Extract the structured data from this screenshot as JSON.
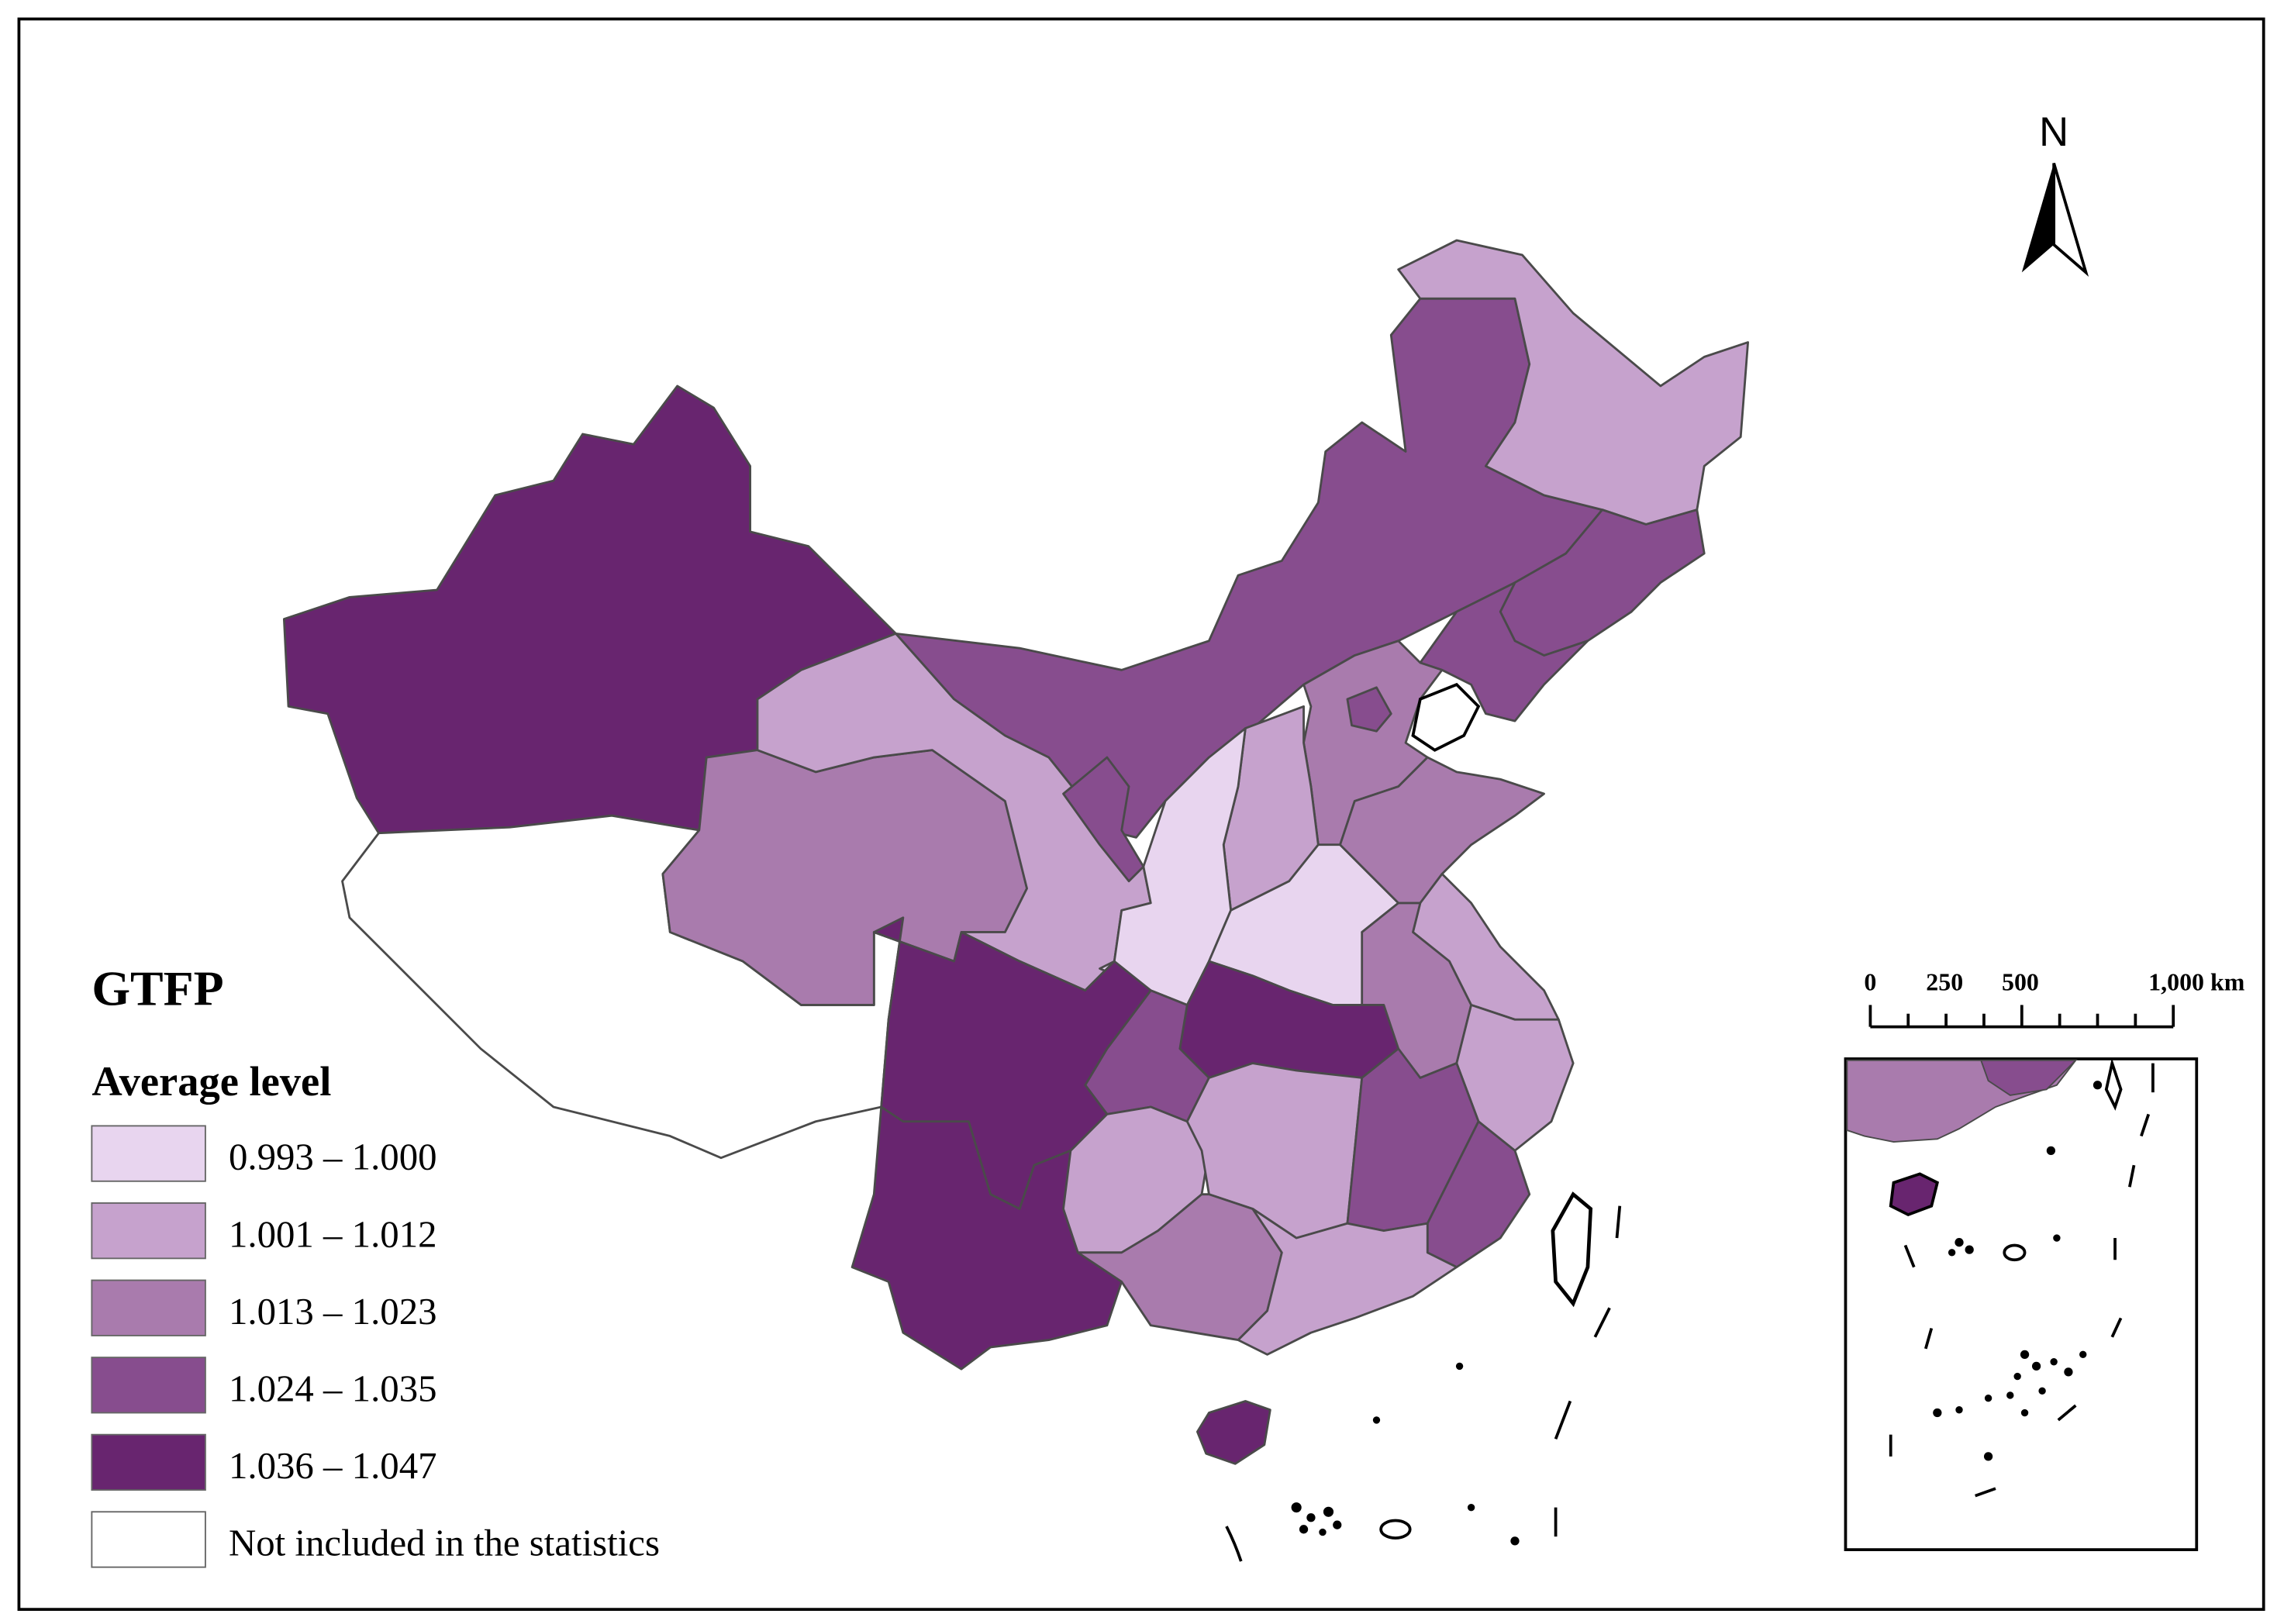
{
  "title": "GTFP",
  "legend": {
    "heading": "Average level",
    "classes": [
      {
        "label": "0.993 – 1.000",
        "color": "#e8d5ef"
      },
      {
        "label": "1.001 – 1.012",
        "color": "#c6a2cd"
      },
      {
        "label": "1.013 – 1.023",
        "color": "#a97bad"
      },
      {
        "label": "1.024 – 1.035",
        "color": "#874d8e"
      },
      {
        "label": "1.036 – 1.047",
        "color": "#68256f"
      },
      {
        "label": "Not included in the statistics",
        "color": "#ffffff"
      }
    ]
  },
  "north_arrow": {
    "label": "N"
  },
  "scale_bar": {
    "ticks": [
      "0",
      "250",
      "500",
      "1,000 km"
    ]
  },
  "inset": {
    "name": "South China Sea inset"
  }
}
